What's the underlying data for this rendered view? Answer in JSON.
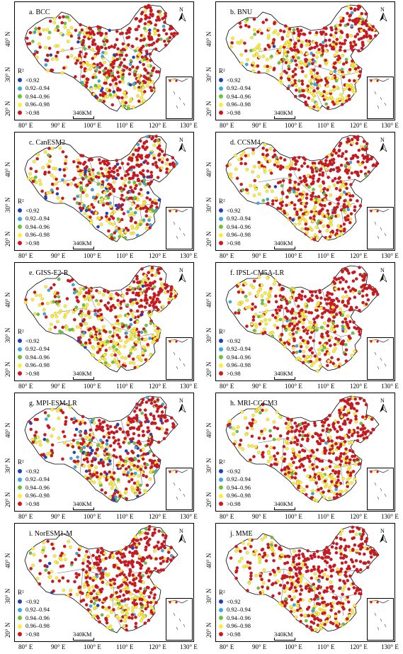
{
  "colors": {
    "lt092": "#1f3fbf",
    "c092_094": "#3aa8e0",
    "c094_096": "#6cc23a",
    "c096_098": "#ffee33",
    "gt098": "#d4141b"
  },
  "legend": {
    "title": "R²",
    "items": [
      "<0.92",
      "0.92–0.94",
      "0.94–0.96",
      "0.96–0.98",
      ">0.98"
    ]
  },
  "scale_label": "340KM",
  "north_label": "N",
  "x_ticks": [
    "80° E",
    "90° E",
    "100° E",
    "110° E",
    "120° E",
    "130° E"
  ],
  "y_ticks": [
    "40° N",
    "30° N",
    "20° N"
  ],
  "panels": [
    {
      "title": "a.  BCC",
      "mix": [
        2,
        4,
        10,
        22,
        62
      ]
    },
    {
      "title": "b.  BNU",
      "mix": [
        1,
        3,
        6,
        40,
        50
      ]
    },
    {
      "title": "c.  CanESM2",
      "mix": [
        6,
        6,
        10,
        28,
        50
      ]
    },
    {
      "title": "d.  CCSM4",
      "mix": [
        1,
        2,
        5,
        25,
        67
      ]
    },
    {
      "title": "e.  GISS-E2-R",
      "mix": [
        2,
        4,
        12,
        45,
        37
      ]
    },
    {
      "title": "f.  IPSL-CM5A-LR",
      "mix": [
        1,
        2,
        8,
        30,
        59
      ]
    },
    {
      "title": "g.  MPI-ESM-LR",
      "mix": [
        8,
        5,
        8,
        22,
        57
      ]
    },
    {
      "title": "h.  MRI-CGCM3",
      "mix": [
        0,
        1,
        3,
        30,
        66
      ]
    },
    {
      "title": "i.  NorESM1-M",
      "mix": [
        1,
        2,
        6,
        28,
        63
      ]
    },
    {
      "title": "j.  MME",
      "mix": [
        0,
        1,
        3,
        22,
        74
      ]
    }
  ]
}
